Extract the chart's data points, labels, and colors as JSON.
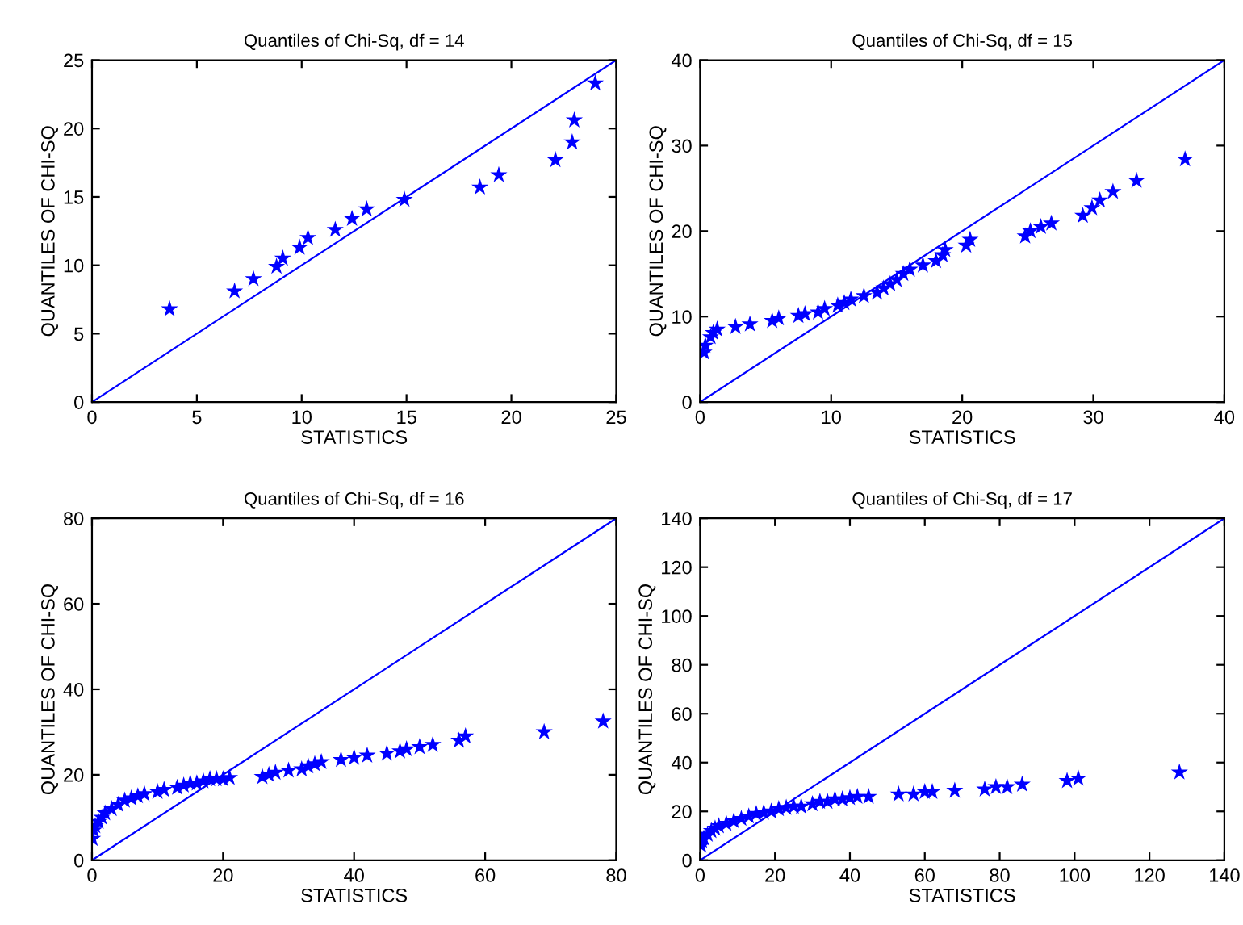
{
  "chart_data": [
    {
      "type": "scatter",
      "title": "Quantiles of Chi-Sq, df = 14",
      "xlabel": "STATISTICS",
      "ylabel": "QUANTILES OF CHI-SQ",
      "xlim": [
        0,
        25
      ],
      "ylim": [
        0,
        25
      ],
      "xticks": [
        0,
        5,
        10,
        15,
        20,
        25
      ],
      "yticks": [
        0,
        5,
        10,
        15,
        20,
        25
      ],
      "marker": "star",
      "grid": false,
      "legend": false,
      "series": [
        {
          "color": "#0000ff",
          "x": [
            3.7,
            6.8,
            7.7,
            8.8,
            9.1,
            9.9,
            10.3,
            11.6,
            12.4,
            13.1,
            14.9,
            18.5,
            19.4,
            22.1,
            22.9,
            23.0,
            24.0
          ],
          "values": [
            6.8,
            8.1,
            9.0,
            9.9,
            10.5,
            11.3,
            12.0,
            12.6,
            13.4,
            14.1,
            14.8,
            15.7,
            16.6,
            17.7,
            19.0,
            20.6,
            23.3
          ]
        },
        {
          "type": "line",
          "color": "#0000ff",
          "x": [
            0,
            25
          ],
          "values": [
            0,
            25
          ],
          "marker": "none"
        }
      ]
    },
    {
      "type": "scatter",
      "title": "Quantiles of Chi-Sq, df = 15",
      "xlabel": "STATISTICS",
      "ylabel": "QUANTILES OF CHI-SQ",
      "xlim": [
        0,
        40
      ],
      "ylim": [
        0,
        40
      ],
      "xticks": [
        0,
        10,
        20,
        30,
        40
      ],
      "yticks": [
        0,
        10,
        20,
        30,
        40
      ],
      "marker": "star",
      "grid": false,
      "legend": false,
      "series": [
        {
          "color": "#0000ff",
          "x": [
            0.3,
            0.4,
            0.8,
            1.0,
            1.3,
            2.7,
            3.8,
            5.5,
            6.0,
            7.5,
            8.0,
            9.0,
            9.5,
            10.5,
            11.0,
            11.5,
            12.5,
            13.5,
            14.0,
            14.5,
            15.0,
            15.5,
            16.0,
            17.0,
            18.0,
            18.5,
            18.7,
            20.3,
            20.6,
            24.8,
            25.2,
            26.0,
            26.8,
            29.2,
            29.9,
            30.5,
            31.5,
            33.3,
            37.0
          ],
          "values": [
            5.8,
            6.6,
            7.6,
            8.1,
            8.5,
            8.8,
            9.1,
            9.5,
            9.8,
            10.1,
            10.3,
            10.5,
            10.9,
            11.3,
            11.6,
            12.0,
            12.4,
            12.8,
            13.3,
            13.8,
            14.3,
            15.0,
            15.5,
            16.0,
            16.5,
            17.2,
            17.8,
            18.3,
            19.0,
            19.4,
            20.0,
            20.5,
            20.9,
            21.8,
            22.7,
            23.6,
            24.6,
            25.9,
            28.4
          ]
        },
        {
          "type": "line",
          "color": "#0000ff",
          "x": [
            0,
            40
          ],
          "values": [
            0,
            40
          ],
          "marker": "none"
        }
      ]
    },
    {
      "type": "scatter",
      "title": "Quantiles of Chi-Sq, df = 16",
      "xlabel": "STATISTICS",
      "ylabel": "QUANTILES OF CHI-SQ",
      "xlim": [
        0,
        80
      ],
      "ylim": [
        0,
        80
      ],
      "xticks": [
        0,
        20,
        40,
        60,
        80
      ],
      "yticks": [
        0,
        20,
        40,
        60,
        80
      ],
      "marker": "star",
      "grid": false,
      "legend": false,
      "series": [
        {
          "color": "#0000ff",
          "x": [
            0.1,
            0.3,
            0.5,
            1,
            1.5,
            2,
            3,
            4,
            5,
            6,
            7,
            8,
            10,
            11,
            13,
            14,
            15,
            16,
            17,
            18,
            19,
            20,
            21,
            26,
            27,
            28,
            30,
            32,
            33,
            34,
            35,
            38,
            40,
            42,
            45,
            47,
            48,
            50,
            52,
            56,
            57,
            69,
            78
          ],
          "values": [
            5,
            7,
            8,
            9,
            10,
            11,
            12,
            13,
            14,
            14.5,
            15,
            15.5,
            16,
            16.5,
            17,
            17.5,
            18,
            18,
            18.5,
            19,
            19,
            19,
            19.3,
            19.5,
            20,
            20.5,
            21,
            21.3,
            22,
            22.5,
            23,
            23.5,
            24,
            24.5,
            25,
            25.5,
            26,
            26.5,
            27,
            28,
            29,
            30,
            32.5
          ]
        },
        {
          "type": "line",
          "color": "#0000ff",
          "x": [
            0,
            80
          ],
          "values": [
            0,
            80
          ],
          "marker": "none"
        }
      ]
    },
    {
      "type": "scatter",
      "title": "Quantiles of Chi-Sq, df = 17",
      "xlabel": "STATISTICS",
      "ylabel": "QUANTILES OF CHI-SQ",
      "xlim": [
        0,
        140
      ],
      "ylim": [
        0,
        140
      ],
      "xticks": [
        0,
        20,
        40,
        60,
        80,
        100,
        120,
        140
      ],
      "yticks": [
        0,
        20,
        40,
        60,
        80,
        100,
        120,
        140
      ],
      "marker": "star",
      "grid": false,
      "legend": false,
      "series": [
        {
          "color": "#0000ff",
          "x": [
            0.3,
            0.5,
            1,
            2,
            3,
            4,
            5,
            7,
            9,
            11,
            13,
            15,
            17,
            19,
            21,
            23,
            25,
            27,
            30,
            32,
            34,
            36,
            38,
            40,
            42,
            45,
            53,
            57,
            60,
            62,
            68,
            76,
            79,
            82,
            86,
            98,
            101,
            128
          ],
          "values": [
            6,
            8,
            9,
            10.5,
            12,
            13,
            14,
            15,
            16,
            17,
            18,
            19,
            19.5,
            20,
            21,
            21.5,
            22,
            22,
            23,
            24,
            24,
            25,
            25,
            25.5,
            26,
            26,
            27,
            27,
            28,
            28,
            28.5,
            29,
            30,
            30,
            31,
            32.5,
            33.5,
            36
          ]
        },
        {
          "type": "line",
          "color": "#0000ff",
          "x": [
            0,
            140
          ],
          "values": [
            0,
            140
          ],
          "marker": "none"
        }
      ]
    }
  ]
}
